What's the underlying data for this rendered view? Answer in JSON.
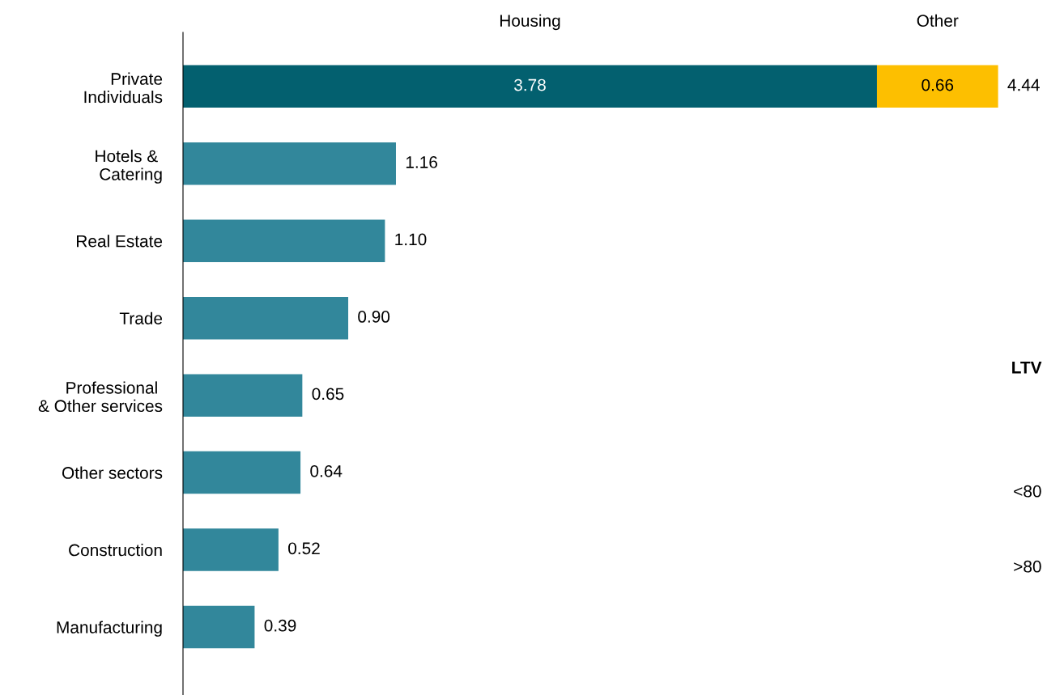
{
  "chart_data": {
    "type": "bar",
    "orientation": "horizontal",
    "stacked": true,
    "categories": [
      "Private\nIndividuals",
      "Hotels & \nCatering",
      "Real Estate",
      "Trade",
      "Professional \n& Other services",
      "Other sectors",
      "Construction",
      "Manufacturing"
    ],
    "series": [
      {
        "name": "Housing",
        "colors": [
          "#03606f",
          "#32879b",
          "#32879b",
          "#32879b",
          "#32879b",
          "#32879b",
          "#32879b",
          "#32879b"
        ],
        "values": [
          3.78,
          1.16,
          1.1,
          0.9,
          0.65,
          0.64,
          0.52,
          0.39
        ],
        "value_labels": [
          "3.78",
          "1.16",
          "1.10",
          "0.90",
          "0.65",
          "0.64",
          "0.52",
          "0.39"
        ]
      },
      {
        "name": "Other",
        "color": "#fdbf00",
        "values": [
          0.66,
          null,
          null,
          null,
          null,
          null,
          null,
          null
        ],
        "value_labels": [
          "0.66",
          null,
          null,
          null,
          null,
          null,
          null,
          null
        ]
      }
    ],
    "totals": [
      "4.44",
      null,
      null,
      null,
      null,
      null,
      null,
      null
    ],
    "legend": "top",
    "grid": false,
    "annotations": [
      "LTV",
      "<80",
      ">80"
    ]
  }
}
